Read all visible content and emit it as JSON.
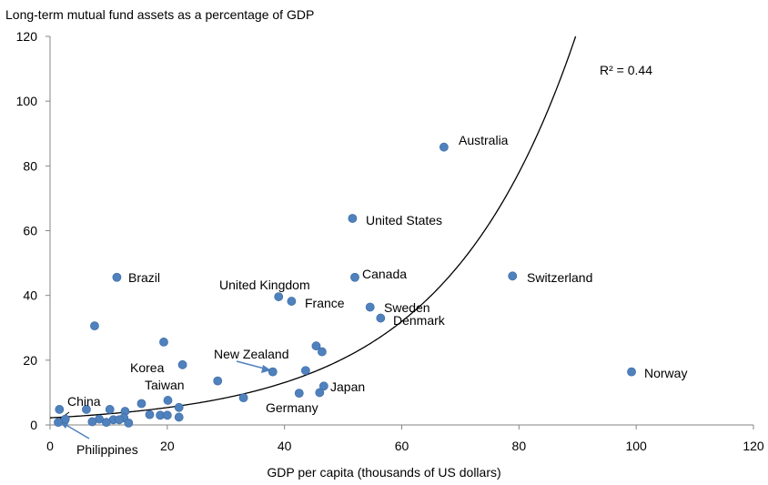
{
  "chart_data": {
    "type": "scatter",
    "title": "Long-term mutual fund assets as a percentage of GDP",
    "xlabel": "GDP per capita (thousands of US dollars)",
    "ylabel": "",
    "xlim": [
      0,
      120
    ],
    "ylim": [
      0,
      120
    ],
    "xticks": [
      "0",
      "20",
      "40",
      "60",
      "80",
      "100",
      "120"
    ],
    "yticks": [
      "0",
      "20",
      "40",
      "60",
      "80",
      "100",
      "120"
    ],
    "grid": false,
    "legend": "none",
    "marker_color": "#4f81bd",
    "trendline": {
      "type": "exponential",
      "label": "R² = 0.44",
      "a": 2.2,
      "b": 0.0446
    },
    "points": [
      {
        "x": 67.2,
        "y": 85.8,
        "label": "Australia"
      },
      {
        "x": 51.6,
        "y": 63.8,
        "label": "United States"
      },
      {
        "x": 78.9,
        "y": 46.0,
        "label": "Switzerland"
      },
      {
        "x": 52.0,
        "y": 45.6,
        "label": "Canada"
      },
      {
        "x": 11.4,
        "y": 45.6,
        "label": "Brazil"
      },
      {
        "x": 39.0,
        "y": 39.6,
        "label": "United Kingdom"
      },
      {
        "x": 41.2,
        "y": 38.2,
        "label": "France"
      },
      {
        "x": 54.6,
        "y": 36.4,
        "label": "Sweden"
      },
      {
        "x": 56.4,
        "y": 33.0,
        "label": "Denmark"
      },
      {
        "x": 99.2,
        "y": 16.4,
        "label": "Norway"
      },
      {
        "x": 38.0,
        "y": 16.4,
        "label": "New Zealand"
      },
      {
        "x": 22.6,
        "y": 18.6,
        "label": "Korea"
      },
      {
        "x": 20.1,
        "y": 7.6,
        "label": "Taiwan"
      },
      {
        "x": 46.7,
        "y": 12.0,
        "label": "Japan"
      },
      {
        "x": 42.5,
        "y": 9.8,
        "label": "Germany"
      },
      {
        "x": 1.6,
        "y": 4.8,
        "label": "China"
      },
      {
        "x": 2.6,
        "y": 1.8,
        "label": "Philippines"
      },
      {
        "x": 7.6,
        "y": 30.6,
        "label": ""
      },
      {
        "x": 19.4,
        "y": 25.6,
        "label": ""
      },
      {
        "x": 45.4,
        "y": 24.4,
        "label": ""
      },
      {
        "x": 46.4,
        "y": 22.6,
        "label": ""
      },
      {
        "x": 43.6,
        "y": 16.8,
        "label": ""
      },
      {
        "x": 28.6,
        "y": 13.6,
        "label": ""
      },
      {
        "x": 46.0,
        "y": 10.0,
        "label": ""
      },
      {
        "x": 33.0,
        "y": 8.4,
        "label": ""
      },
      {
        "x": 15.6,
        "y": 6.6,
        "label": ""
      },
      {
        "x": 6.2,
        "y": 4.8,
        "label": ""
      },
      {
        "x": 10.2,
        "y": 4.8,
        "label": ""
      },
      {
        "x": 12.8,
        "y": 4.2,
        "label": ""
      },
      {
        "x": 22.0,
        "y": 5.4,
        "label": ""
      },
      {
        "x": 17.0,
        "y": 3.2,
        "label": ""
      },
      {
        "x": 18.8,
        "y": 3.0,
        "label": ""
      },
      {
        "x": 20.0,
        "y": 3.0,
        "label": ""
      },
      {
        "x": 22.0,
        "y": 2.4,
        "label": ""
      },
      {
        "x": 12.6,
        "y": 2.2,
        "label": ""
      },
      {
        "x": 8.4,
        "y": 1.8,
        "label": ""
      },
      {
        "x": 10.8,
        "y": 1.6,
        "label": ""
      },
      {
        "x": 11.8,
        "y": 1.6,
        "label": ""
      },
      {
        "x": 7.2,
        "y": 1.0,
        "label": ""
      },
      {
        "x": 9.6,
        "y": 0.8,
        "label": ""
      },
      {
        "x": 13.4,
        "y": 0.6,
        "label": ""
      },
      {
        "x": 1.4,
        "y": 0.8,
        "label": ""
      }
    ]
  }
}
